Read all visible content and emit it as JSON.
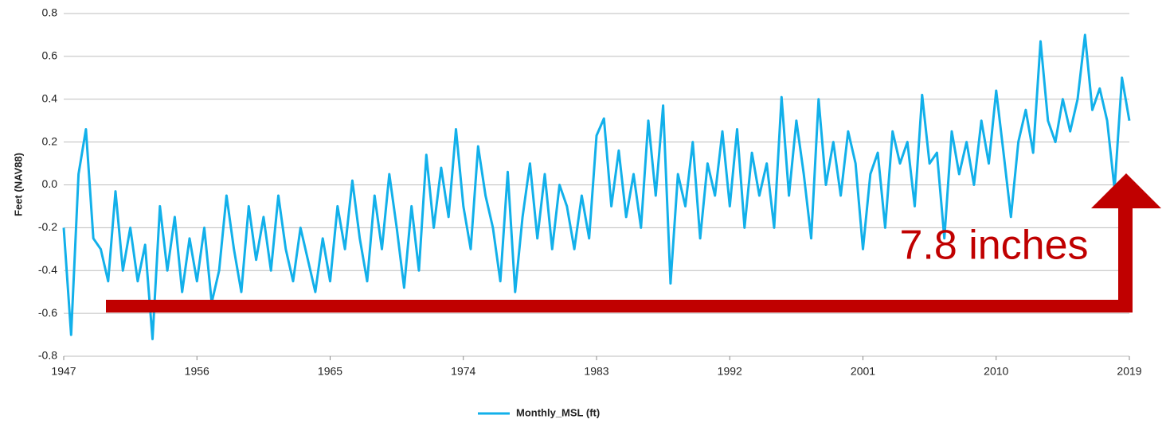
{
  "chart_data": {
    "type": "line",
    "ylabel": "Feet (NAV88)",
    "annotation": "7.8 inches",
    "x": [
      1947.0,
      1947.5,
      1948.0,
      1948.5,
      1949.0,
      1949.5,
      1950.0,
      1950.5,
      1951.0,
      1951.5,
      1952.0,
      1952.5,
      1953.0,
      1953.5,
      1954.0,
      1954.5,
      1955.0,
      1955.5,
      1956.0,
      1956.5,
      1957.0,
      1957.5,
      1958.0,
      1958.5,
      1959.0,
      1959.5,
      1960.0,
      1960.5,
      1961.0,
      1961.5,
      1962.0,
      1962.5,
      1963.0,
      1963.5,
      1964.0,
      1964.5,
      1965.0,
      1965.5,
      1966.0,
      1966.5,
      1967.0,
      1967.5,
      1968.0,
      1968.5,
      1969.0,
      1969.5,
      1970.0,
      1970.5,
      1971.0,
      1971.5,
      1972.0,
      1972.5,
      1973.0,
      1973.5,
      1974.0,
      1974.5,
      1975.0,
      1975.5,
      1976.0,
      1976.5,
      1977.0,
      1977.5,
      1978.0,
      1978.5,
      1979.0,
      1979.5,
      1980.0,
      1980.5,
      1981.0,
      1981.5,
      1982.0,
      1982.5,
      1983.0,
      1983.5,
      1984.0,
      1984.5,
      1985.0,
      1985.5,
      1986.0,
      1986.5,
      1987.0,
      1987.5,
      1988.0,
      1988.5,
      1989.0,
      1989.5,
      1990.0,
      1990.5,
      1991.0,
      1991.5,
      1992.0,
      1992.5,
      1993.0,
      1993.5,
      1994.0,
      1994.5,
      1995.0,
      1995.5,
      1996.0,
      1996.5,
      1997.0,
      1997.5,
      1998.0,
      1998.5,
      1999.0,
      1999.5,
      2000.0,
      2000.5,
      2001.0,
      2001.5,
      2002.0,
      2002.5,
      2003.0,
      2003.5,
      2004.0,
      2004.5,
      2005.0,
      2005.5,
      2006.0,
      2006.5,
      2007.0,
      2007.5,
      2008.0,
      2008.5,
      2009.0,
      2009.5,
      2010.0,
      2010.5,
      2011.0,
      2011.5,
      2012.0,
      2012.5,
      2013.0,
      2013.5,
      2014.0,
      2014.5,
      2015.0,
      2015.5,
      2016.0,
      2016.5,
      2017.0,
      2017.5,
      2018.0,
      2018.5,
      2019.0
    ],
    "series": [
      {
        "name": "Monthly_MSL (ft)",
        "color": "#12b0ea",
        "values": [
          -0.2,
          -0.7,
          0.05,
          0.26,
          -0.25,
          -0.3,
          -0.45,
          -0.03,
          -0.4,
          -0.2,
          -0.45,
          -0.28,
          -0.72,
          -0.1,
          -0.4,
          -0.15,
          -0.5,
          -0.25,
          -0.45,
          -0.2,
          -0.55,
          -0.4,
          -0.05,
          -0.3,
          -0.5,
          -0.1,
          -0.35,
          -0.15,
          -0.4,
          -0.05,
          -0.3,
          -0.45,
          -0.2,
          -0.35,
          -0.5,
          -0.25,
          -0.45,
          -0.1,
          -0.3,
          0.02,
          -0.25,
          -0.45,
          -0.05,
          -0.3,
          0.05,
          -0.2,
          -0.48,
          -0.1,
          -0.4,
          0.14,
          -0.2,
          0.08,
          -0.15,
          0.26,
          -0.1,
          -0.3,
          0.18,
          -0.05,
          -0.2,
          -0.45,
          0.06,
          -0.5,
          -0.15,
          0.1,
          -0.25,
          0.05,
          -0.3,
          0.0,
          -0.1,
          -0.3,
          -0.05,
          -0.25,
          0.23,
          0.31,
          -0.1,
          0.16,
          -0.15,
          0.05,
          -0.2,
          0.3,
          -0.05,
          0.37,
          -0.46,
          0.05,
          -0.1,
          0.2,
          -0.25,
          0.1,
          -0.05,
          0.25,
          -0.1,
          0.26,
          -0.2,
          0.15,
          -0.05,
          0.1,
          -0.2,
          0.41,
          -0.05,
          0.3,
          0.05,
          -0.25,
          0.4,
          0.0,
          0.2,
          -0.05,
          0.25,
          0.1,
          -0.3,
          0.05,
          0.15,
          -0.2,
          0.25,
          0.1,
          0.2,
          -0.1,
          0.42,
          0.1,
          0.15,
          -0.25,
          0.25,
          0.05,
          0.2,
          0.0,
          0.3,
          0.1,
          0.44,
          0.15,
          -0.15,
          0.2,
          0.35,
          0.15,
          0.67,
          0.3,
          0.2,
          0.4,
          0.25,
          0.4,
          0.7,
          0.35,
          0.45,
          0.3,
          -0.02,
          0.5,
          0.3
        ]
      }
    ],
    "xlim": [
      1947,
      2019
    ],
    "xticks": [
      1947,
      1956,
      1965,
      1974,
      1983,
      1992,
      2001,
      2010,
      2019
    ],
    "ylim": [
      -0.8,
      0.8
    ],
    "yticks": [
      -0.8,
      -0.6,
      -0.4,
      -0.2,
      {
        "value": 0,
        "label": "0.0"
      },
      0.2,
      0.4,
      0.6,
      0.8
    ],
    "grid": true
  }
}
